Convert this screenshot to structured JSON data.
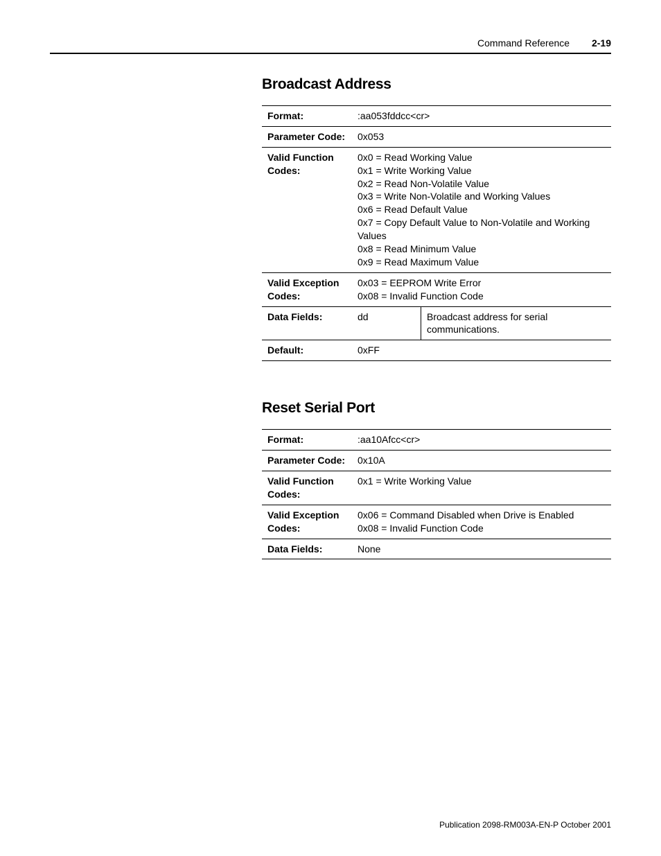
{
  "header": {
    "section": "Command Reference",
    "page_number": "2-19"
  },
  "sections": [
    {
      "title": "Broadcast Address",
      "rows": {
        "format_label": "Format:",
        "format_value": ":aa053fddcc<cr>",
        "param_label": "Parameter Code:",
        "param_value": "0x053",
        "vfc_label": "Valid Function Codes:",
        "vfc_lines": [
          "0x0 = Read Working Value",
          "0x1 = Write Working Value",
          "0x2 = Read Non-Volatile Value",
          "0x3 = Write Non-Volatile and Working Values",
          "0x6 = Read Default Value",
          "0x7 = Copy Default Value to Non-Volatile and Working Values",
          "0x8 = Read Minimum Value",
          "0x9 = Read Maximum Value"
        ],
        "vec_label": "Valid Exception Codes:",
        "vec_lines": [
          "0x03 = EEPROM Write Error",
          "0x08 = Invalid Function Code"
        ],
        "df_label": "Data Fields:",
        "df_code": "dd",
        "df_desc": "Broadcast address for serial communications.",
        "default_label": "Default:",
        "default_value": "0xFF"
      }
    },
    {
      "title": "Reset Serial Port",
      "rows": {
        "format_label": "Format:",
        "format_value": ":aa10Afcc<cr>",
        "param_label": "Parameter Code:",
        "param_value": "0x10A",
        "vfc_label": "Valid Function Codes:",
        "vfc_lines": [
          "0x1 = Write Working Value"
        ],
        "vec_label": "Valid Exception Codes:",
        "vec_lines": [
          "0x06 = Command Disabled when Drive is Enabled",
          "0x08 = Invalid Function Code"
        ],
        "df_label": "Data Fields:",
        "df_value": "None"
      }
    }
  ],
  "footer": {
    "text": "Publication 2098-RM003A-EN-P October 2001"
  }
}
